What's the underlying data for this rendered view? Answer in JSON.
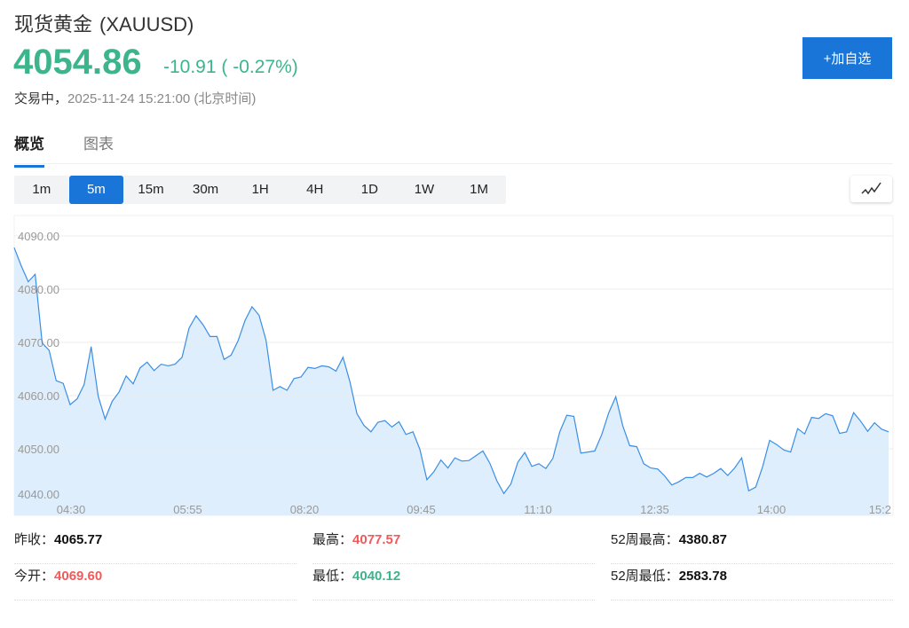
{
  "header": {
    "name": "现货黄金",
    "symbol": "(XAUUSD)",
    "price": "4054.86",
    "change": "-10.91 ( -0.27%)",
    "status": "交易中，",
    "datetime": "2025-11-24 15:21:00",
    "timezone": "(北京时间)",
    "add_button": "+加自选"
  },
  "tabs": [
    {
      "label": "概览",
      "active": true
    },
    {
      "label": "图表",
      "active": false
    }
  ],
  "intervals": [
    {
      "label": "1m"
    },
    {
      "label": "5m",
      "active": true
    },
    {
      "label": "15m"
    },
    {
      "label": "30m"
    },
    {
      "label": "1H"
    },
    {
      "label": "4H"
    },
    {
      "label": "1D"
    },
    {
      "label": "1W"
    },
    {
      "label": "1M"
    }
  ],
  "chart_type_icon": "line-chart-icon",
  "colors": {
    "accent": "#1976d8",
    "up": "#f05a5a",
    "down": "#3cb48c",
    "line": "#3a8ee6",
    "fill": "#deeefc"
  },
  "chart_data": {
    "type": "area",
    "ylim": [
      4040,
      4090
    ],
    "y_ticks": [
      "4090.00",
      "4080.00",
      "4070.00",
      "4060.00",
      "4050.00",
      "4040.00"
    ],
    "x_ticks": [
      "04:30",
      "05:55",
      "08:20",
      "09:45",
      "11:10",
      "12:35",
      "14:00",
      "15:2"
    ],
    "grid": true,
    "values": [
      4087.8,
      4084.4,
      4081.4,
      4082.8,
      4069.9,
      4068.5,
      4062.8,
      4062.3,
      4058.3,
      4059.4,
      4062.1,
      4069.2,
      4059.9,
      4055.6,
      4058.9,
      4060.7,
      4063.7,
      4062.2,
      4065.2,
      4066.3,
      4064.7,
      4065.9,
      4065.6,
      4065.9,
      4067.2,
      4072.7,
      4075.0,
      4073.3,
      4071.1,
      4071.1,
      4066.8,
      4067.6,
      4070.3,
      4074.1,
      4076.7,
      4075.1,
      4070.4,
      4061.0,
      4061.7,
      4061.0,
      4063.2,
      4063.5,
      4065.3,
      4065.1,
      4065.6,
      4065.4,
      4064.6,
      4067.2,
      4062.6,
      4056.6,
      4054.4,
      4053.2,
      4055.0,
      4055.3,
      4054.1,
      4055.1,
      4052.7,
      4053.2,
      4049.9,
      4044.2,
      4045.7,
      4047.9,
      4046.4,
      4048.3,
      4047.7,
      4047.8,
      4048.7,
      4049.6,
      4047.3,
      4044.0,
      4041.6,
      4043.4,
      4047.5,
      4049.3,
      4046.7,
      4047.2,
      4046.3,
      4048.2,
      4053.2,
      4056.3,
      4056.1,
      4049.2,
      4049.4,
      4049.6,
      4052.7,
      4056.8,
      4059.8,
      4054.3,
      4050.6,
      4050.4,
      4047.2,
      4046.4,
      4046.2,
      4044.9,
      4043.2,
      4043.8,
      4044.6,
      4044.6,
      4045.4,
      4044.7,
      4045.4,
      4046.3,
      4045.0,
      4046.4,
      4048.3,
      4042.1,
      4042.8,
      4046.7,
      4051.6,
      4050.8,
      4049.8,
      4049.4,
      4053.8,
      4052.8,
      4055.9,
      4055.7,
      4056.6,
      4056.2,
      4052.9,
      4053.2,
      4056.8,
      4055.2,
      4053.3,
      4054.9,
      4053.7,
      4053.2
    ]
  },
  "stats": [
    {
      "label": "昨收：",
      "value": "4065.77",
      "tone": ""
    },
    {
      "label": "最高：",
      "value": "4077.57",
      "tone": "red"
    },
    {
      "label": "52周最高：",
      "value": "4380.87",
      "tone": ""
    },
    {
      "label": "今开：",
      "value": "4069.60",
      "tone": "red"
    },
    {
      "label": "最低：",
      "value": "4040.12",
      "tone": "green"
    },
    {
      "label": "52周最低：",
      "value": "2583.78",
      "tone": ""
    }
  ]
}
